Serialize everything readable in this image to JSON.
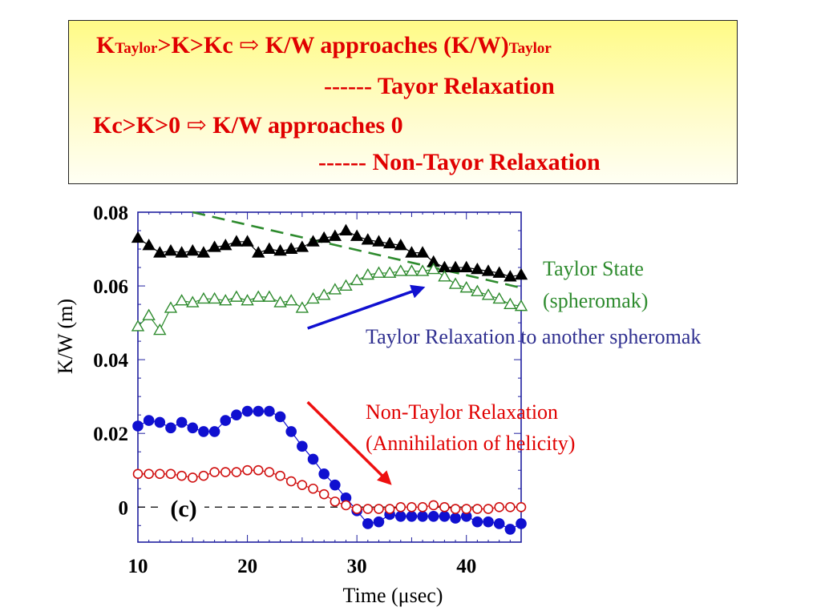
{
  "header": {
    "line1_a": "K",
    "line1_sub1": "Taylor",
    "line1_b": ">K>Kc ⇨ K/W approaches (K/W)",
    "line1_sub2": "Taylor",
    "line2": "------ Tayor Relaxation",
    "line3": "Kc>K>0 ⇨ K/W approaches 0",
    "line4": "------ Non-Tayor Relaxation"
  },
  "annotations": {
    "taylor_state_1": "Taylor State",
    "taylor_state_2": "(spheromak)",
    "taylor_relax": "Taylor Relaxation to another spheromak",
    "non_taylor_1": "Non-Taylor Relaxation",
    "non_taylor_2": "(Annihilation of helicity)",
    "panel_label": "(c)"
  },
  "colors": {
    "black_series": "#000000",
    "green_series": "#2e8b2e",
    "blue_series": "#1010d0",
    "red_series": "#d01010",
    "axis": "#2020a0",
    "header_text": "#e00000",
    "taylor_annot": "#2e8b2e",
    "taylor_relax_annot": "#303090",
    "non_taylor_annot": "#e00000"
  },
  "chart_data": {
    "type": "scatter",
    "xlabel": "Time (μsec)",
    "ylabel": "K/W (m)",
    "xlim": [
      10,
      45
    ],
    "ylim": [
      -0.0095,
      0.08
    ],
    "xticks": [
      10,
      20,
      30,
      40
    ],
    "xtick_labels": [
      "10",
      "20",
      "30",
      "40"
    ],
    "yticks": [
      0,
      0.02,
      0.04,
      0.06,
      0.08
    ],
    "ytick_labels": [
      "0",
      "0.02",
      "0.04",
      "0.06",
      "0.08"
    ],
    "grid": false,
    "series": [
      {
        "marker": "filled-triangle",
        "x": [
          10,
          11,
          12,
          13,
          14,
          15,
          16,
          17,
          18,
          19,
          20,
          21,
          22,
          23,
          24,
          25,
          26,
          27,
          28,
          29,
          30,
          31,
          32,
          33,
          34,
          35,
          36,
          37,
          38,
          39,
          40,
          41,
          42,
          43,
          44,
          45
        ],
        "y": [
          0.073,
          0.071,
          0.069,
          0.0695,
          0.069,
          0.0695,
          0.069,
          0.0705,
          0.071,
          0.072,
          0.072,
          0.069,
          0.07,
          0.0695,
          0.07,
          0.0705,
          0.072,
          0.073,
          0.0735,
          0.075,
          0.0735,
          0.0725,
          0.072,
          0.0715,
          0.071,
          0.069,
          0.069,
          0.0665,
          0.065,
          0.065,
          0.065,
          0.0645,
          0.064,
          0.0635,
          0.0625,
          0.063
        ]
      },
      {
        "marker": "open-triangle",
        "x": [
          10,
          11,
          12,
          13,
          14,
          15,
          16,
          17,
          18,
          19,
          20,
          21,
          22,
          23,
          24,
          25,
          26,
          27,
          28,
          29,
          30,
          31,
          32,
          33,
          34,
          35,
          36,
          37,
          38,
          39,
          40,
          41,
          42,
          43,
          44,
          45
        ],
        "y": [
          0.049,
          0.052,
          0.048,
          0.054,
          0.056,
          0.0555,
          0.0565,
          0.0565,
          0.056,
          0.057,
          0.056,
          0.057,
          0.057,
          0.0555,
          0.056,
          0.054,
          0.0565,
          0.0575,
          0.059,
          0.06,
          0.0615,
          0.063,
          0.0635,
          0.0635,
          0.064,
          0.064,
          0.064,
          0.0645,
          0.0625,
          0.0605,
          0.0595,
          0.0585,
          0.0575,
          0.0565,
          0.055,
          0.0545
        ]
      },
      {
        "marker": "filled-circle",
        "x": [
          10,
          11,
          12,
          13,
          14,
          15,
          16,
          17,
          18,
          19,
          20,
          21,
          22,
          23,
          24,
          25,
          26,
          27,
          28,
          29,
          30,
          31,
          32,
          33,
          34,
          35,
          36,
          37,
          38,
          39,
          40,
          41,
          42,
          43,
          44,
          45
        ],
        "y": [
          0.022,
          0.0235,
          0.023,
          0.0215,
          0.023,
          0.0215,
          0.0205,
          0.0205,
          0.0235,
          0.025,
          0.026,
          0.026,
          0.026,
          0.0245,
          0.0205,
          0.0165,
          0.013,
          0.009,
          0.006,
          0.0025,
          -0.001,
          -0.0045,
          -0.004,
          -0.002,
          -0.0025,
          -0.0025,
          -0.0025,
          -0.0025,
          -0.0025,
          -0.003,
          -0.0025,
          -0.004,
          -0.004,
          -0.0045,
          -0.006,
          -0.0045
        ]
      },
      {
        "marker": "open-circle",
        "x": [
          10,
          11,
          12,
          13,
          14,
          15,
          16,
          17,
          18,
          19,
          20,
          21,
          22,
          23,
          24,
          25,
          26,
          27,
          28,
          29,
          30,
          31,
          32,
          33,
          34,
          35,
          36,
          37,
          38,
          39,
          40,
          41,
          42,
          43,
          44,
          45
        ],
        "y": [
          0.009,
          0.009,
          0.009,
          0.009,
          0.0085,
          0.008,
          0.0085,
          0.0095,
          0.0095,
          0.0095,
          0.01,
          0.01,
          0.0095,
          0.0085,
          0.007,
          0.006,
          0.005,
          0.0035,
          0.0015,
          0.0005,
          -0.0005,
          -0.0005,
          -0.0005,
          -0.0005,
          0.0,
          0.0,
          0.0,
          0.0005,
          0.0,
          -0.0005,
          -0.0005,
          -0.0005,
          -0.0005,
          0.0,
          0.0,
          0.0
        ]
      }
    ],
    "reference_lines": [
      {
        "style": "dashed-green",
        "x": [
          15,
          45
        ],
        "y": [
          0.08,
          0.0595
        ]
      },
      {
        "style": "dashed-black",
        "x": [
          10,
          45
        ],
        "y": [
          0.0,
          0.0
        ]
      }
    ],
    "arrows": [
      {
        "color": "blue",
        "from": [
          25.5,
          0.0485
        ],
        "to": [
          36,
          0.0595
        ]
      },
      {
        "color": "red",
        "from": [
          25.5,
          0.0285
        ],
        "to": [
          33,
          0.0065
        ]
      }
    ]
  }
}
